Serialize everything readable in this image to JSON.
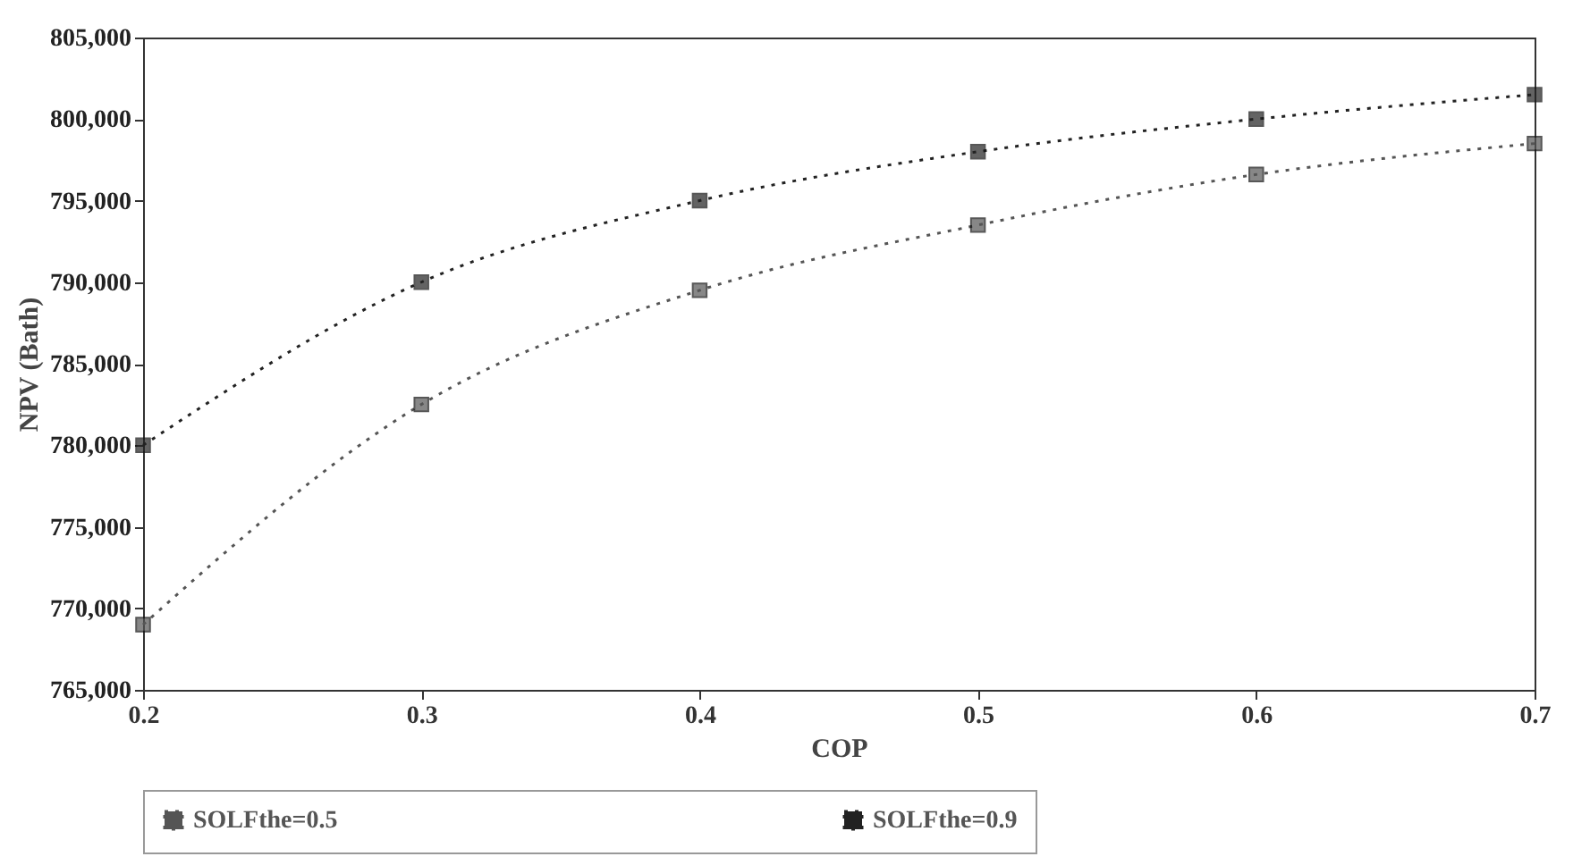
{
  "chart_data": {
    "type": "line",
    "xlabel": "COP",
    "ylabel": "NPV (Bath)",
    "x": [
      0.2,
      0.3,
      0.4,
      0.5,
      0.6,
      0.7
    ],
    "series": [
      {
        "name": "SOLFthe=0.5",
        "color": "#555555",
        "values": [
          769000,
          782500,
          789500,
          793500,
          796600,
          798500
        ]
      },
      {
        "name": "SOLFthe=0.9",
        "color": "#222222",
        "values": [
          780000,
          790000,
          795000,
          798000,
          800000,
          801500
        ]
      }
    ],
    "xlim": [
      0.2,
      0.7
    ],
    "xticks": [
      0.2,
      0.3,
      0.4,
      0.5,
      0.6,
      0.7
    ],
    "ylim": [
      765000,
      805000
    ],
    "yticks": [
      {
        "value": 765000,
        "label": "765,000"
      },
      {
        "value": 770000,
        "label": "770,000"
      },
      {
        "value": 775000,
        "label": "775,000"
      },
      {
        "value": 780000,
        "label": "780,000"
      },
      {
        "value": 785000,
        "label": "785,000"
      },
      {
        "value": 790000,
        "label": "790,000"
      },
      {
        "value": 795000,
        "label": "795,000"
      },
      {
        "value": 800000,
        "label": "800,000"
      },
      {
        "value": 805000,
        "label": "805,000"
      }
    ],
    "grid": false,
    "legend": "bottom",
    "marker": "square",
    "line_style": "dotted"
  }
}
